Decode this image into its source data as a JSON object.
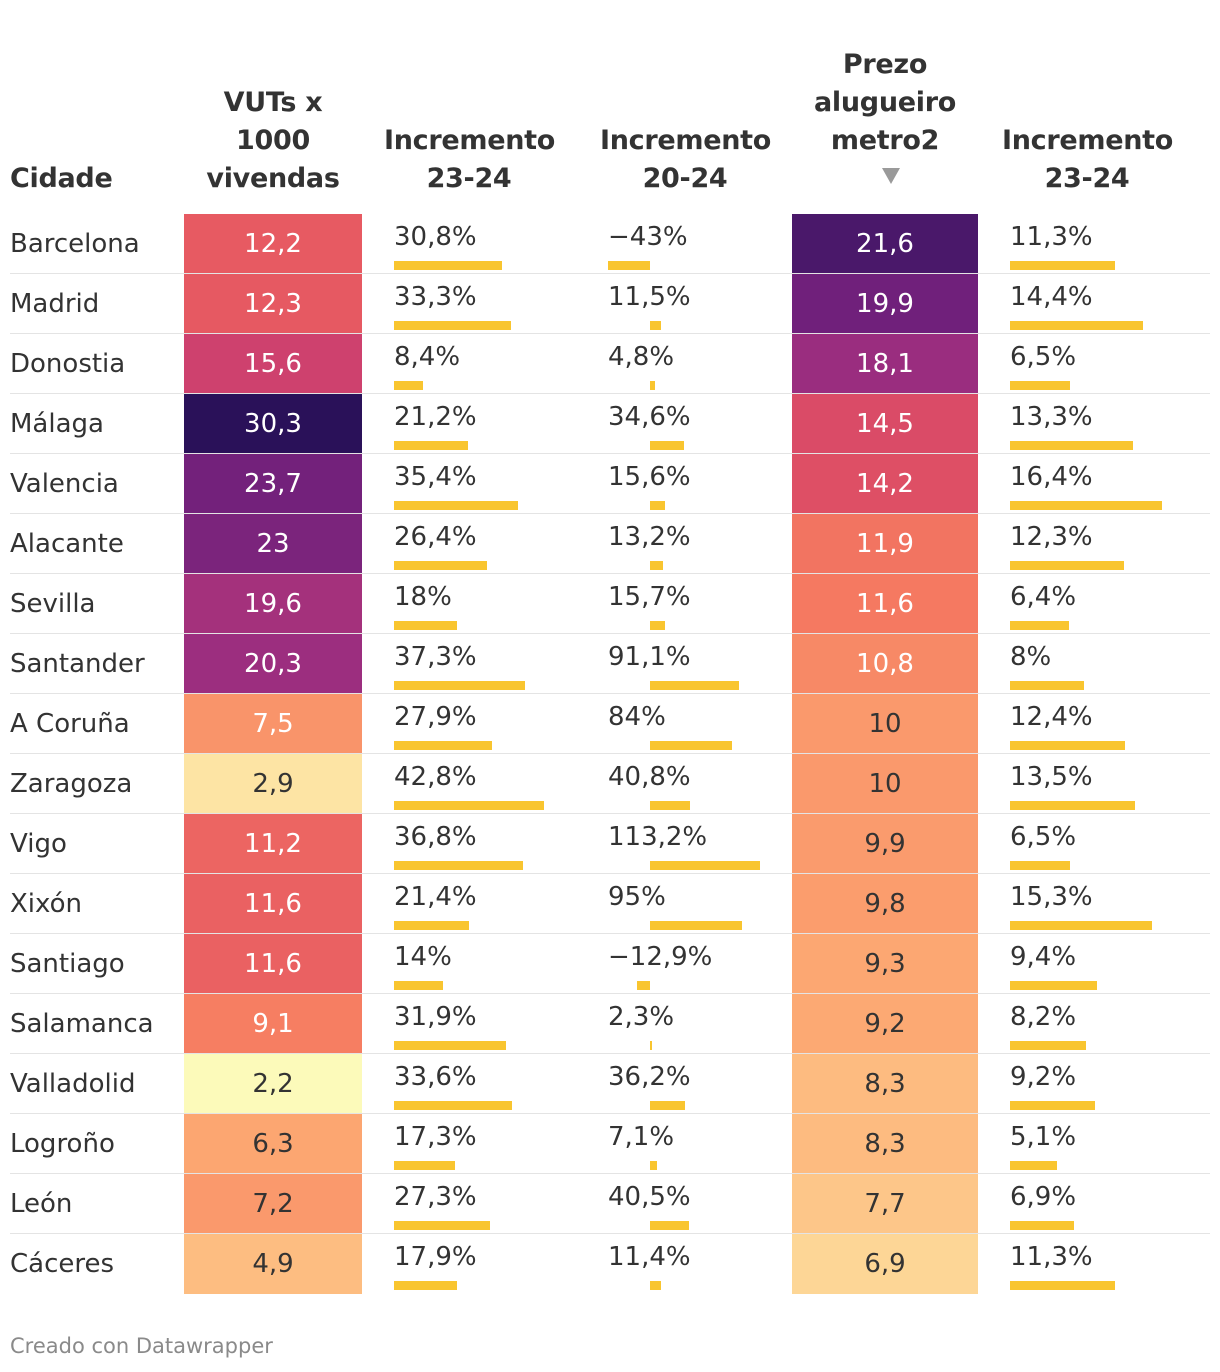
{
  "headers": {
    "city": "Cidade",
    "vut": [
      "VUTs x",
      "1000",
      "vivendas"
    ],
    "inc1": [
      "Incremento",
      "23-24"
    ],
    "inc2": [
      "Incremento",
      "20-24"
    ],
    "price": [
      "Prezo",
      "alugueiro",
      "metro2"
    ],
    "inc3": [
      "Incremento",
      "23-24"
    ]
  },
  "footer": "Creado con Datawrapper",
  "colors": {
    "bar": "#f9c52f"
  },
  "chart_data": {
    "type": "table",
    "sorted_by": "Prezo alugueiro metro2 (descending)",
    "columns": [
      "Cidade",
      "VUTs x 1000 vivendas",
      "Incremento 23-24",
      "Incremento 20-24",
      "Prezo alugueiro metro2",
      "Incremento 23-24"
    ],
    "rows": [
      {
        "city": "Barcelona",
        "vut": "12,2",
        "vut_val": 12.2,
        "inc1": "30,8%",
        "inc1_val": 30.8,
        "inc2": "−43%",
        "inc2_val": -43,
        "price": "21,6",
        "price_val": 21.6,
        "inc3": "11,3%",
        "inc3_val": 11.3
      },
      {
        "city": "Madrid",
        "vut": "12,3",
        "vut_val": 12.3,
        "inc1": "33,3%",
        "inc1_val": 33.3,
        "inc2": "11,5%",
        "inc2_val": 11.5,
        "price": "19,9",
        "price_val": 19.9,
        "inc3": "14,4%",
        "inc3_val": 14.4
      },
      {
        "city": "Donostia",
        "vut": "15,6",
        "vut_val": 15.6,
        "inc1": "8,4%",
        "inc1_val": 8.4,
        "inc2": "4,8%",
        "inc2_val": 4.8,
        "price": "18,1",
        "price_val": 18.1,
        "inc3": "6,5%",
        "inc3_val": 6.5
      },
      {
        "city": "Málaga",
        "vut": "30,3",
        "vut_val": 30.3,
        "inc1": "21,2%",
        "inc1_val": 21.2,
        "inc2": "34,6%",
        "inc2_val": 34.6,
        "price": "14,5",
        "price_val": 14.5,
        "inc3": "13,3%",
        "inc3_val": 13.3
      },
      {
        "city": "Valencia",
        "vut": "23,7",
        "vut_val": 23.7,
        "inc1": "35,4%",
        "inc1_val": 35.4,
        "inc2": "15,6%",
        "inc2_val": 15.6,
        "price": "14,2",
        "price_val": 14.2,
        "inc3": "16,4%",
        "inc3_val": 16.4
      },
      {
        "city": "Alacante",
        "vut": "23",
        "vut_val": 23,
        "inc1": "26,4%",
        "inc1_val": 26.4,
        "inc2": "13,2%",
        "inc2_val": 13.2,
        "price": "11,9",
        "price_val": 11.9,
        "inc3": "12,3%",
        "inc3_val": 12.3
      },
      {
        "city": "Sevilla",
        "vut": "19,6",
        "vut_val": 19.6,
        "inc1": "18%",
        "inc1_val": 18,
        "inc2": "15,7%",
        "inc2_val": 15.7,
        "price": "11,6",
        "price_val": 11.6,
        "inc3": "6,4%",
        "inc3_val": 6.4
      },
      {
        "city": "Santander",
        "vut": "20,3",
        "vut_val": 20.3,
        "inc1": "37,3%",
        "inc1_val": 37.3,
        "inc2": "91,1%",
        "inc2_val": 91.1,
        "price": "10,8",
        "price_val": 10.8,
        "inc3": "8%",
        "inc3_val": 8
      },
      {
        "city": "A Coruña",
        "vut": "7,5",
        "vut_val": 7.5,
        "inc1": "27,9%",
        "inc1_val": 27.9,
        "inc2": "84%",
        "inc2_val": 84,
        "price": "10",
        "price_val": 10,
        "inc3": "12,4%",
        "inc3_val": 12.4
      },
      {
        "city": "Zaragoza",
        "vut": "2,9",
        "vut_val": 2.9,
        "inc1": "42,8%",
        "inc1_val": 42.8,
        "inc2": "40,8%",
        "inc2_val": 40.8,
        "price": "10",
        "price_val": 10,
        "inc3": "13,5%",
        "inc3_val": 13.5
      },
      {
        "city": "Vigo",
        "vut": "11,2",
        "vut_val": 11.2,
        "inc1": "36,8%",
        "inc1_val": 36.8,
        "inc2": "113,2%",
        "inc2_val": 113.2,
        "price": "9,9",
        "price_val": 9.9,
        "inc3": "6,5%",
        "inc3_val": 6.5
      },
      {
        "city": "Xixón",
        "vut": "11,6",
        "vut_val": 11.6,
        "inc1": "21,4%",
        "inc1_val": 21.4,
        "inc2": "95%",
        "inc2_val": 95,
        "price": "9,8",
        "price_val": 9.8,
        "inc3": "15,3%",
        "inc3_val": 15.3
      },
      {
        "city": "Santiago",
        "vut": "11,6",
        "vut_val": 11.6,
        "inc1": "14%",
        "inc1_val": 14,
        "inc2": "−12,9%",
        "inc2_val": -12.9,
        "price": "9,3",
        "price_val": 9.3,
        "inc3": "9,4%",
        "inc3_val": 9.4
      },
      {
        "city": "Salamanca",
        "vut": "9,1",
        "vut_val": 9.1,
        "inc1": "31,9%",
        "inc1_val": 31.9,
        "inc2": "2,3%",
        "inc2_val": 2.3,
        "price": "9,2",
        "price_val": 9.2,
        "inc3": "8,2%",
        "inc3_val": 8.2
      },
      {
        "city": "Valladolid",
        "vut": "2,2",
        "vut_val": 2.2,
        "inc1": "33,6%",
        "inc1_val": 33.6,
        "inc2": "36,2%",
        "inc2_val": 36.2,
        "price": "8,3",
        "price_val": 8.3,
        "inc3": "9,2%",
        "inc3_val": 9.2
      },
      {
        "city": "Logroño",
        "vut": "6,3",
        "vut_val": 6.3,
        "inc1": "17,3%",
        "inc1_val": 17.3,
        "inc2": "7,1%",
        "inc2_val": 7.1,
        "price": "8,3",
        "price_val": 8.3,
        "inc3": "5,1%",
        "inc3_val": 5.1
      },
      {
        "city": "León",
        "vut": "7,2",
        "vut_val": 7.2,
        "inc1": "27,3%",
        "inc1_val": 27.3,
        "inc2": "40,5%",
        "inc2_val": 40.5,
        "price": "7,7",
        "price_val": 7.7,
        "inc3": "6,9%",
        "inc3_val": 6.9
      },
      {
        "city": "Cáceres",
        "vut": "4,9",
        "vut_val": 4.9,
        "inc1": "17,9%",
        "inc1_val": 17.9,
        "inc2": "11,4%",
        "inc2_val": 11.4,
        "price": "6,9",
        "price_val": 6.9,
        "inc3": "11,3%",
        "inc3_val": 11.3
      }
    ]
  }
}
